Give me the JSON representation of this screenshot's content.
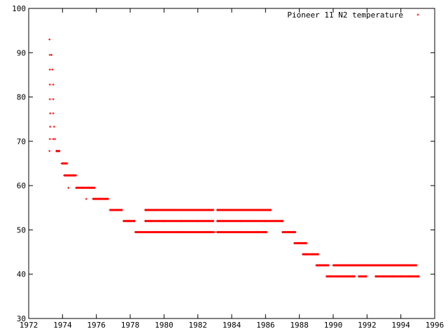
{
  "chart_data": {
    "type": "scatter",
    "title": "",
    "xlabel": "",
    "ylabel": "",
    "xlim": [
      1972,
      1996
    ],
    "ylim": [
      30,
      100
    ],
    "x_ticks": [
      "1972",
      "1974",
      "1976",
      "1978",
      "1980",
      "1982",
      "1984",
      "1986",
      "1988",
      "1990",
      "1992",
      "1994",
      "1996"
    ],
    "y_ticks": [
      "30",
      "40",
      "50",
      "60",
      "70",
      "80",
      "90",
      "100"
    ],
    "grid": false,
    "legend": {
      "position": "top-right"
    },
    "series": [
      {
        "name": "Pioneer 11 N2 temperature",
        "color": "#ff0000",
        "marker": "plus",
        "points": [
          [
            1973.23,
            93.0
          ],
          [
            1973.25,
            89.5
          ],
          [
            1973.35,
            89.5
          ],
          [
            1973.25,
            86.2
          ],
          [
            1973.4,
            86.2
          ],
          [
            1973.25,
            82.8
          ],
          [
            1973.45,
            82.8
          ],
          [
            1973.25,
            79.5
          ],
          [
            1973.45,
            79.5
          ],
          [
            1973.27,
            76.3
          ],
          [
            1973.45,
            76.3
          ],
          [
            1973.27,
            73.3
          ],
          [
            1973.5,
            73.3
          ],
          [
            1973.25,
            70.5
          ],
          [
            1973.45,
            70.5
          ],
          [
            1973.55,
            70.5
          ],
          [
            1973.23,
            67.8
          ],
          [
            1973.65,
            67.8
          ],
          [
            1973.8,
            67.8
          ],
          [
            1973.95,
            65.0
          ],
          [
            1974.1,
            65.0
          ],
          [
            1974.25,
            65.0
          ],
          [
            1974.1,
            62.3
          ],
          [
            1974.4,
            62.3
          ],
          [
            1974.6,
            62.3
          ],
          [
            1974.8,
            62.3
          ],
          [
            1974.35,
            59.5
          ],
          [
            1974.8,
            59.5
          ],
          [
            1975.2,
            59.5
          ],
          [
            1975.6,
            59.5
          ],
          [
            1975.9,
            59.5
          ],
          [
            1975.4,
            57.0
          ],
          [
            1975.8,
            57.0
          ],
          [
            1976.2,
            57.0
          ],
          [
            1976.7,
            57.0
          ],
          [
            1976.8,
            54.5
          ],
          [
            1977.2,
            54.5
          ],
          [
            1977.5,
            54.5
          ],
          [
            1977.6,
            52.0
          ],
          [
            1977.9,
            52.0
          ],
          [
            1978.2,
            52.0
          ],
          [
            1978.3,
            49.5
          ],
          [
            1979.5,
            49.5
          ],
          [
            1981.0,
            49.5
          ],
          [
            1982.5,
            49.5
          ],
          [
            1983.0,
            49.5
          ],
          [
            1984.5,
            49.5
          ],
          [
            1985.5,
            49.5
          ],
          [
            1986.0,
            49.5
          ],
          [
            1978.9,
            54.5
          ],
          [
            1980.0,
            54.5
          ],
          [
            1981.0,
            54.5
          ],
          [
            1982.0,
            54.5
          ],
          [
            1982.9,
            54.5
          ],
          [
            1983.2,
            54.5
          ],
          [
            1984.5,
            54.5
          ],
          [
            1985.5,
            54.5
          ],
          [
            1986.3,
            54.5
          ],
          [
            1978.9,
            52.0
          ],
          [
            1980.0,
            52.0
          ],
          [
            1981.0,
            52.0
          ],
          [
            1982.0,
            52.0
          ],
          [
            1982.9,
            52.0
          ],
          [
            1983.2,
            52.0
          ],
          [
            1984.5,
            52.0
          ],
          [
            1986.0,
            52.0
          ],
          [
            1987.0,
            52.0
          ],
          [
            1987.0,
            49.5
          ],
          [
            1987.4,
            49.5
          ],
          [
            1987.7,
            49.5
          ],
          [
            1987.7,
            47.0
          ],
          [
            1988.0,
            47.0
          ],
          [
            1988.4,
            47.0
          ],
          [
            1988.2,
            44.5
          ],
          [
            1988.4,
            44.5
          ],
          [
            1988.8,
            44.5
          ],
          [
            1989.1,
            44.5
          ],
          [
            1989.0,
            42.0
          ],
          [
            1989.4,
            42.0
          ],
          [
            1989.7,
            42.0
          ],
          [
            1990.0,
            42.0
          ],
          [
            1991.0,
            42.0
          ],
          [
            1992.0,
            42.0
          ],
          [
            1993.0,
            42.0
          ],
          [
            1994.0,
            42.0
          ],
          [
            1994.9,
            42.0
          ],
          [
            1989.6,
            39.5
          ],
          [
            1990.5,
            39.5
          ],
          [
            1991.2,
            39.5
          ],
          [
            1991.5,
            39.5
          ],
          [
            1991.9,
            39.5
          ],
          [
            1992.5,
            39.5
          ],
          [
            1993.0,
            39.5
          ],
          [
            1993.5,
            39.5
          ],
          [
            1994.0,
            39.5
          ],
          [
            1994.5,
            39.5
          ],
          [
            1995.0,
            39.5
          ]
        ],
        "segments": [
          [
            1973.6,
            1973.85,
            67.8
          ],
          [
            1973.95,
            1974.3,
            65.0
          ],
          [
            1974.1,
            1974.8,
            62.3
          ],
          [
            1974.8,
            1975.9,
            59.5
          ],
          [
            1975.8,
            1976.7,
            57.0
          ],
          [
            1976.8,
            1977.55,
            54.5
          ],
          [
            1977.6,
            1978.3,
            52.0
          ],
          [
            1978.3,
            1982.95,
            49.5
          ],
          [
            1983.1,
            1986.1,
            49.5
          ],
          [
            1978.85,
            1982.95,
            54.5
          ],
          [
            1983.1,
            1986.35,
            54.5
          ],
          [
            1978.85,
            1982.95,
            52.0
          ],
          [
            1983.1,
            1987.05,
            52.0
          ],
          [
            1987.0,
            1987.8,
            49.5
          ],
          [
            1987.7,
            1988.45,
            47.0
          ],
          [
            1988.2,
            1989.15,
            44.5
          ],
          [
            1989.0,
            1989.75,
            42.0
          ],
          [
            1990.0,
            1994.95,
            42.0
          ],
          [
            1989.6,
            1991.3,
            39.5
          ],
          [
            1991.5,
            1992.0,
            39.5
          ],
          [
            1992.5,
            1995.1,
            39.5
          ]
        ]
      }
    ]
  }
}
